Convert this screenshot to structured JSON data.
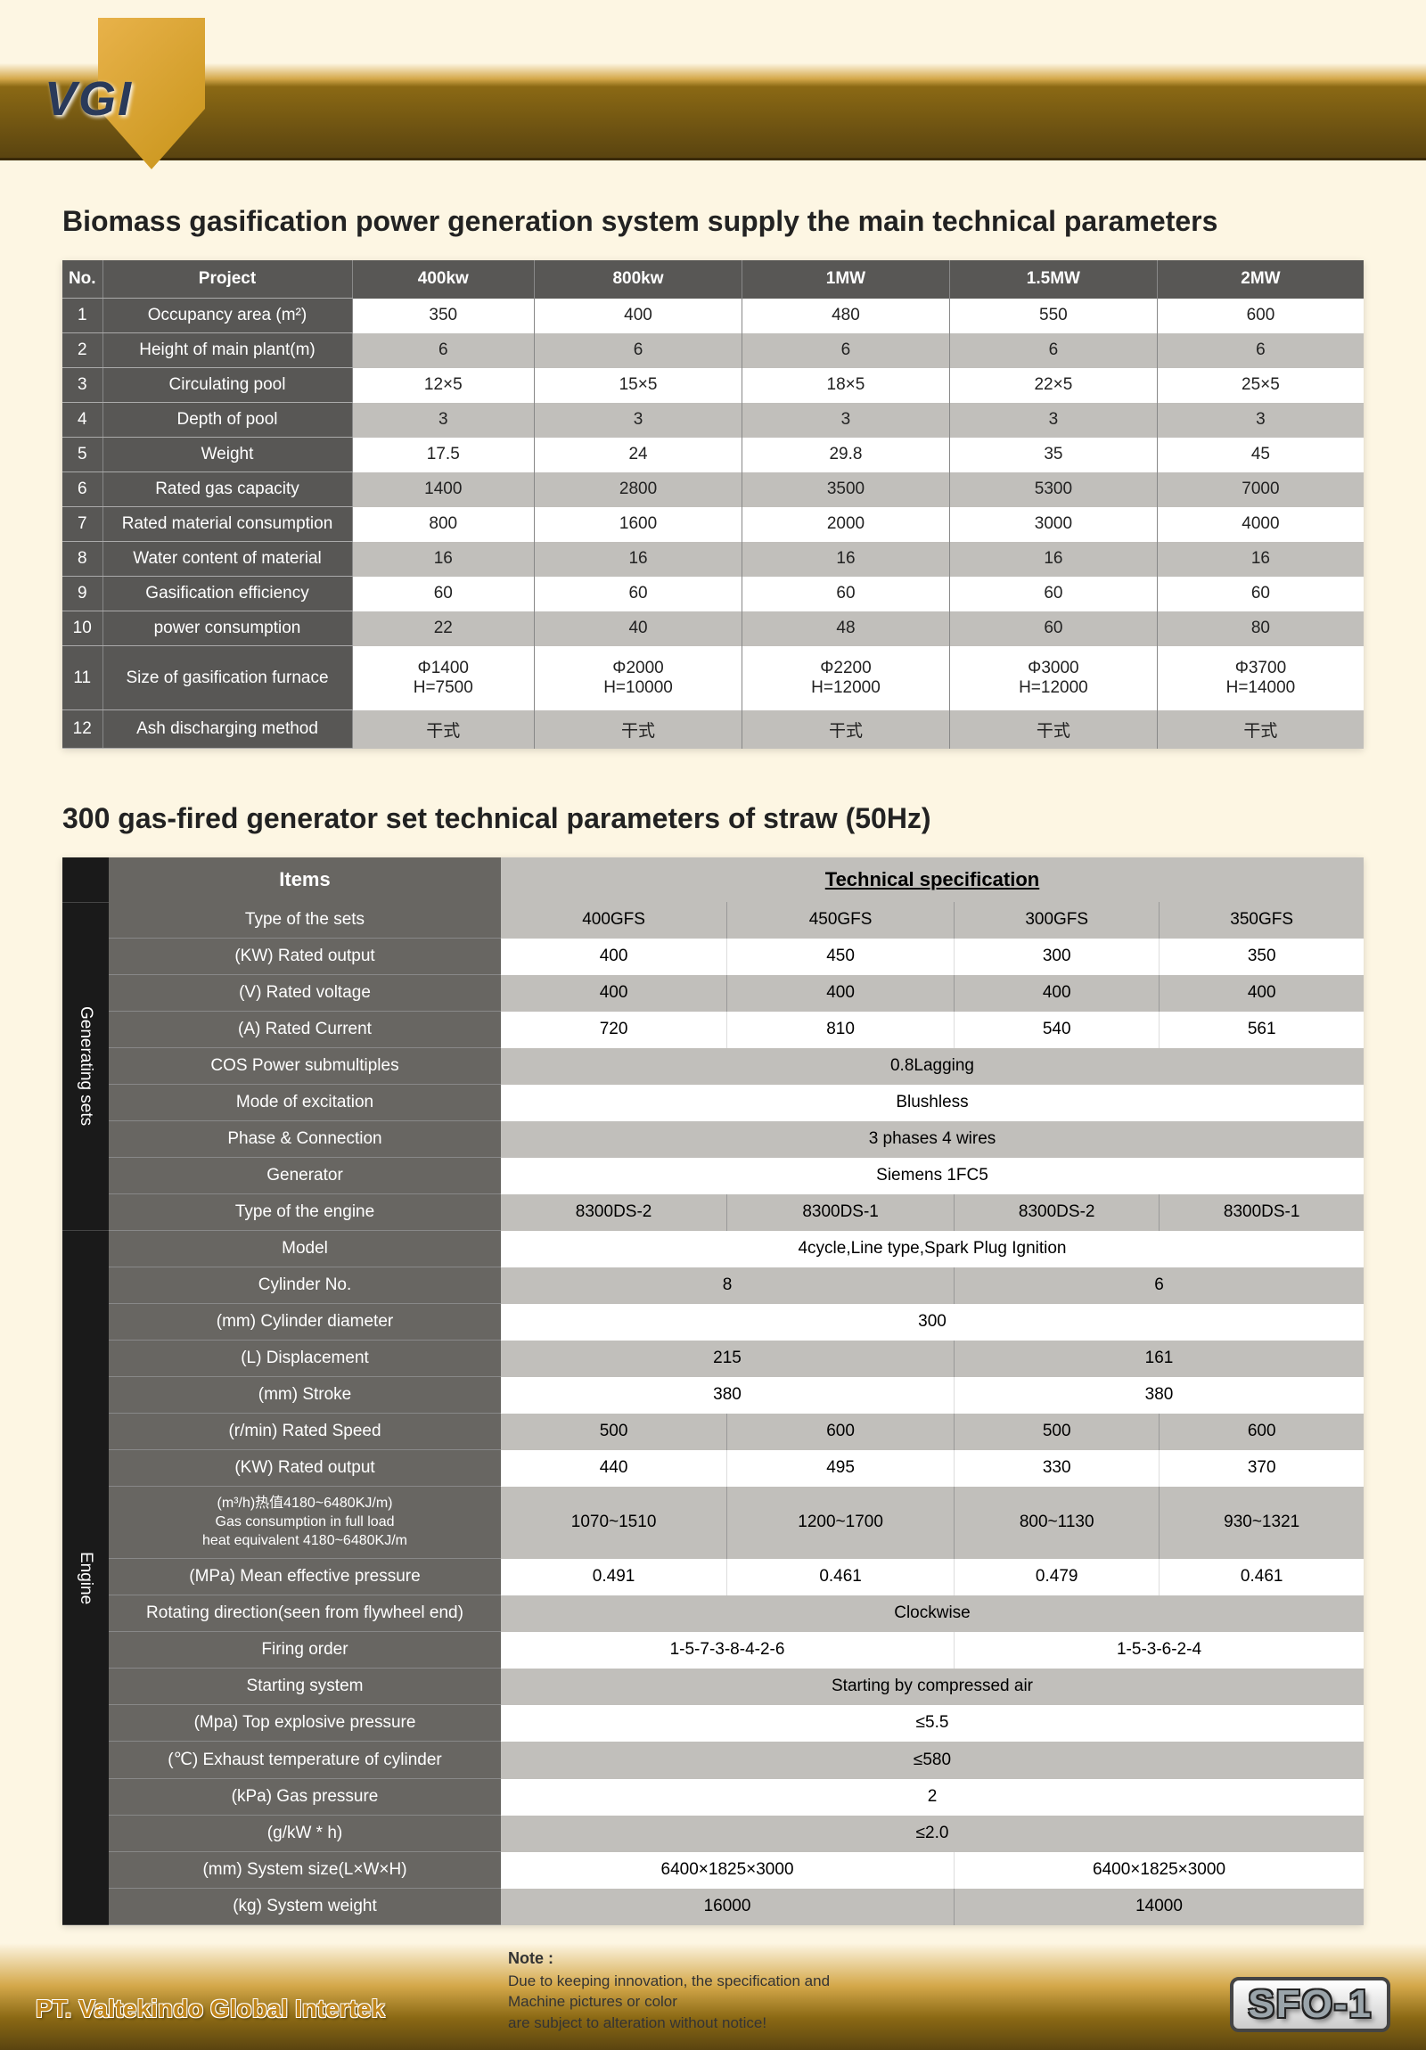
{
  "logo_text": "VGI",
  "title1": "Biomass gasification power generation system supply the main technical parameters",
  "t1": {
    "head": [
      "No.",
      "Project",
      "400kw",
      "800kw",
      "1MW",
      "1.5MW",
      "2MW"
    ],
    "rows": [
      [
        "1",
        "Occupancy area (m²)",
        "350",
        "400",
        "480",
        "550",
        "600"
      ],
      [
        "2",
        "Height of main plant(m)",
        "6",
        "6",
        "6",
        "6",
        "6"
      ],
      [
        "3",
        "Circulating pool",
        "12×5",
        "15×5",
        "18×5",
        "22×5",
        "25×5"
      ],
      [
        "4",
        "Depth of pool",
        "3",
        "3",
        "3",
        "3",
        "3"
      ],
      [
        "5",
        "Weight",
        "17.5",
        "24",
        "29.8",
        "35",
        "45"
      ],
      [
        "6",
        "Rated gas capacity",
        "1400",
        "2800",
        "3500",
        "5300",
        "7000"
      ],
      [
        "7",
        "Rated material consumption",
        "800",
        "1600",
        "2000",
        "3000",
        "4000"
      ],
      [
        "8",
        "Water content of material",
        "16",
        "16",
        "16",
        "16",
        "16"
      ],
      [
        "9",
        "Gasification efficiency",
        "60",
        "60",
        "60",
        "60",
        "60"
      ],
      [
        "10",
        "power consumption",
        "22",
        "40",
        "48",
        "60",
        "80"
      ],
      [
        "11",
        "Size of gasification furnace",
        "Φ1400\nH=7500",
        "Φ2000\nH=10000",
        "Φ2200\nH=12000",
        "Φ3000\nH=12000",
        "Φ3700\nH=14000"
      ],
      [
        "12",
        "Ash discharging method",
        "干式",
        "干式",
        "干式",
        "干式",
        "干式"
      ]
    ]
  },
  "title2": "300 gas-fired generator set technical parameters of straw (50Hz)",
  "t2": {
    "items_h": "Items",
    "spec_h": "Technical specification",
    "side1": "Generating sets",
    "side2": "Engine",
    "rows1": [
      {
        "label": "Type of the sets",
        "cells": [
          "400GFS",
          "450GFS",
          "300GFS",
          "350GFS"
        ]
      },
      {
        "label": "(KW) Rated output",
        "cells": [
          "400",
          "450",
          "300",
          "350"
        ]
      },
      {
        "label": "(V) Rated voltage",
        "cells": [
          "400",
          "400",
          "400",
          "400"
        ]
      },
      {
        "label": "(A) Rated Current",
        "cells": [
          "720",
          "810",
          "540",
          "561"
        ]
      },
      {
        "label": "COS Power submultiples",
        "span": 4,
        "cells": [
          "0.8Lagging"
        ]
      },
      {
        "label": "Mode of excitation",
        "span": 4,
        "cells": [
          "Blushless"
        ]
      },
      {
        "label": "Phase & Connection",
        "span": 4,
        "cells": [
          "3 phases 4 wires"
        ]
      },
      {
        "label": "Generator",
        "span": 4,
        "cells": [
          "Siemens  1FC5"
        ]
      },
      {
        "label": "Type of the engine",
        "cells": [
          "8300DS-2",
          "8300DS-1",
          "8300DS-2",
          "8300DS-1"
        ]
      }
    ],
    "rows2": [
      {
        "label": "Model",
        "span": 4,
        "cells": [
          "4cycle,Line type,Spark Plug Ignition"
        ]
      },
      {
        "label": "Cylinder No.",
        "spans": [
          2,
          2
        ],
        "cells": [
          "8",
          "6"
        ]
      },
      {
        "label": "(mm) Cylinder diameter",
        "span": 4,
        "cells": [
          "300"
        ]
      },
      {
        "label": "(L) Displacement",
        "spans": [
          2,
          2
        ],
        "cells": [
          "215",
          "161"
        ]
      },
      {
        "label": "(mm) Stroke",
        "spans": [
          2,
          2
        ],
        "cells": [
          "380",
          "380"
        ]
      },
      {
        "label": "(r/min) Rated Speed",
        "cells": [
          "500",
          "600",
          "500",
          "600"
        ]
      },
      {
        "label": "(KW) Rated output",
        "cells": [
          "440",
          "495",
          "330",
          "370"
        ]
      },
      {
        "label": "(m³/h)热值4180~6480KJ/m)\nGas consumption in full load\nheat equivalent 4180~6480KJ/m",
        "cells": [
          "1070~1510",
          "1200~1700",
          "800~1130",
          "930~1321"
        ]
      },
      {
        "label": "(MPa) Mean effective pressure",
        "cells": [
          "0.491",
          "0.461",
          "0.479",
          "0.461"
        ]
      },
      {
        "label": "Rotating direction(seen from flywheel end)",
        "span": 4,
        "cells": [
          "Clockwise"
        ]
      },
      {
        "label": "Firing order",
        "spans": [
          2,
          2
        ],
        "cells": [
          "1-5-7-3-8-4-2-6",
          "1-5-3-6-2-4"
        ]
      },
      {
        "label": "Starting system",
        "span": 4,
        "cells": [
          "Starting by compressed air"
        ]
      },
      {
        "label": "(Mpa) Top explosive pressure",
        "span": 4,
        "cells": [
          "≤5.5"
        ]
      },
      {
        "label": "(℃) Exhaust temperature of cylinder",
        "span": 4,
        "cells": [
          "≤580"
        ]
      },
      {
        "label": "(kPa) Gas pressure",
        "span": 4,
        "cells": [
          "2"
        ]
      },
      {
        "label": "(g/kW * h)",
        "span": 4,
        "cells": [
          "≤2.0"
        ]
      },
      {
        "label": "(mm) System size(L×W×H)",
        "spans": [
          2,
          2
        ],
        "cells": [
          "6400×1825×3000",
          "6400×1825×3000"
        ]
      },
      {
        "label": "(kg) System weight",
        "spans": [
          2,
          2
        ],
        "cells": [
          "16000",
          "14000"
        ]
      }
    ]
  },
  "footer": {
    "company": "PT. Valtekindo Global Intertek",
    "note_title": "Note :",
    "note_l1": "Due to keeping innovation, the specification and",
    "note_l2": "Machine pictures or color",
    "note_l3": "are subject to alteration without notice!",
    "badge": "SFO-1"
  }
}
